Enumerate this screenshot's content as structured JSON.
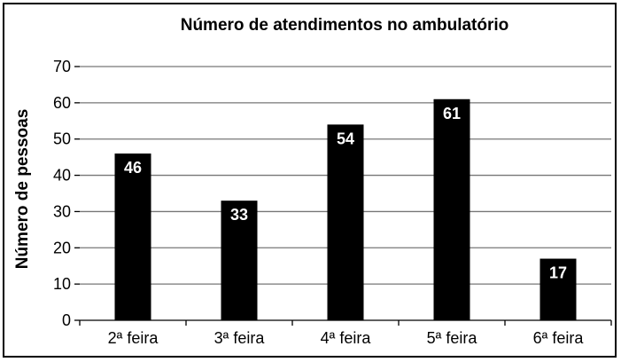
{
  "chart_data": {
    "type": "bar",
    "title": "Número de atendimentos no ambulatório",
    "xlabel": "",
    "ylabel": "Número de pessoas",
    "categories": [
      "2ª feira",
      "3ª feira",
      "4ª feira",
      "5ª feira",
      "6ª feira"
    ],
    "values": [
      46,
      33,
      54,
      61,
      17
    ],
    "data_labels": [
      "46",
      "33",
      "54",
      "61",
      "17"
    ],
    "ylim": [
      0,
      70
    ],
    "yticks": [
      "0",
      "10",
      "20",
      "30",
      "40",
      "50",
      "60",
      "70"
    ],
    "grid": true,
    "legend": "none",
    "bar_color": "#000000",
    "label_color": "#ffffff"
  }
}
